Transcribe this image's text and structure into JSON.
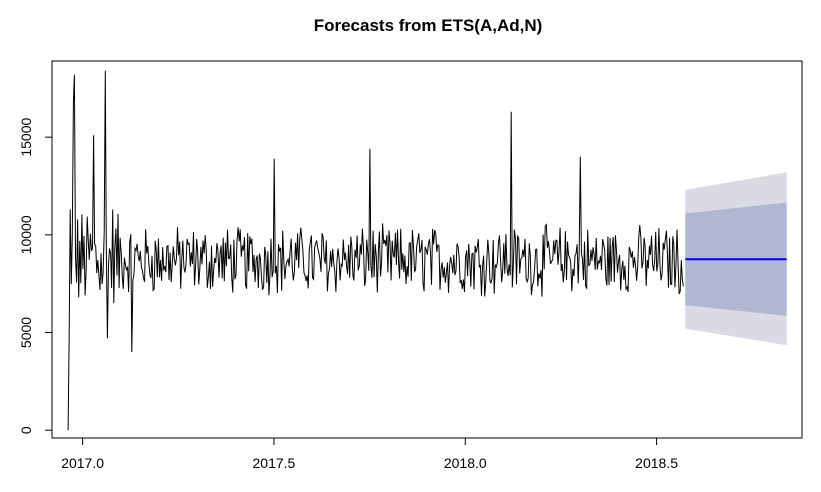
{
  "chart_data": {
    "type": "line",
    "title": "Forecasts from ETS(A,Ad,N)",
    "xlabel": "",
    "ylabel": "",
    "xlim": [
      2016.92,
      2018.88
    ],
    "ylim": [
      -400,
      18900
    ],
    "x_ticks": [
      2017.0,
      2017.5,
      2018.0,
      2018.5
    ],
    "x_tick_labels": [
      "2017.0",
      "2017.5",
      "2018.0",
      "2018.5"
    ],
    "y_ticks": [
      0,
      5000,
      10000,
      15000
    ],
    "y_tick_labels": [
      "0",
      "5000",
      "10000",
      "15000"
    ],
    "grid": false,
    "legend": "none",
    "series": [
      {
        "role": "observed",
        "color": "#000000",
        "x_start": 2016.962,
        "x_end": 2018.57,
        "approx_mean": 8700,
        "notable_points": [
          {
            "x": 2016.962,
            "y": 0
          },
          {
            "x": 2016.975,
            "y": 16800
          },
          {
            "x": 2016.98,
            "y": 18200
          },
          {
            "x": 2017.03,
            "y": 15100
          },
          {
            "x": 2017.06,
            "y": 18400
          },
          {
            "x": 2017.065,
            "y": 4700
          },
          {
            "x": 2017.08,
            "y": 11300
          },
          {
            "x": 2017.13,
            "y": 4000
          },
          {
            "x": 2017.5,
            "y": 13900
          },
          {
            "x": 2017.75,
            "y": 14400
          },
          {
            "x": 2018.12,
            "y": 16300
          },
          {
            "x": 2018.3,
            "y": 14000
          }
        ]
      },
      {
        "role": "point forecast",
        "color": "#0000ff",
        "x": [
          2018.575,
          2018.84
        ],
        "y": [
          8750,
          8750
        ]
      }
    ],
    "intervals": [
      {
        "level": "95%",
        "color": "#dadae4",
        "x": [
          2018.575,
          2018.84
        ],
        "lower": [
          5200,
          4350
        ],
        "upper": [
          12300,
          13200
        ]
      },
      {
        "level": "80%",
        "color": "#b1b6d3",
        "x": [
          2018.575,
          2018.84
        ],
        "lower": [
          6400,
          5850
        ],
        "upper": [
          11100,
          11650
        ]
      }
    ]
  }
}
